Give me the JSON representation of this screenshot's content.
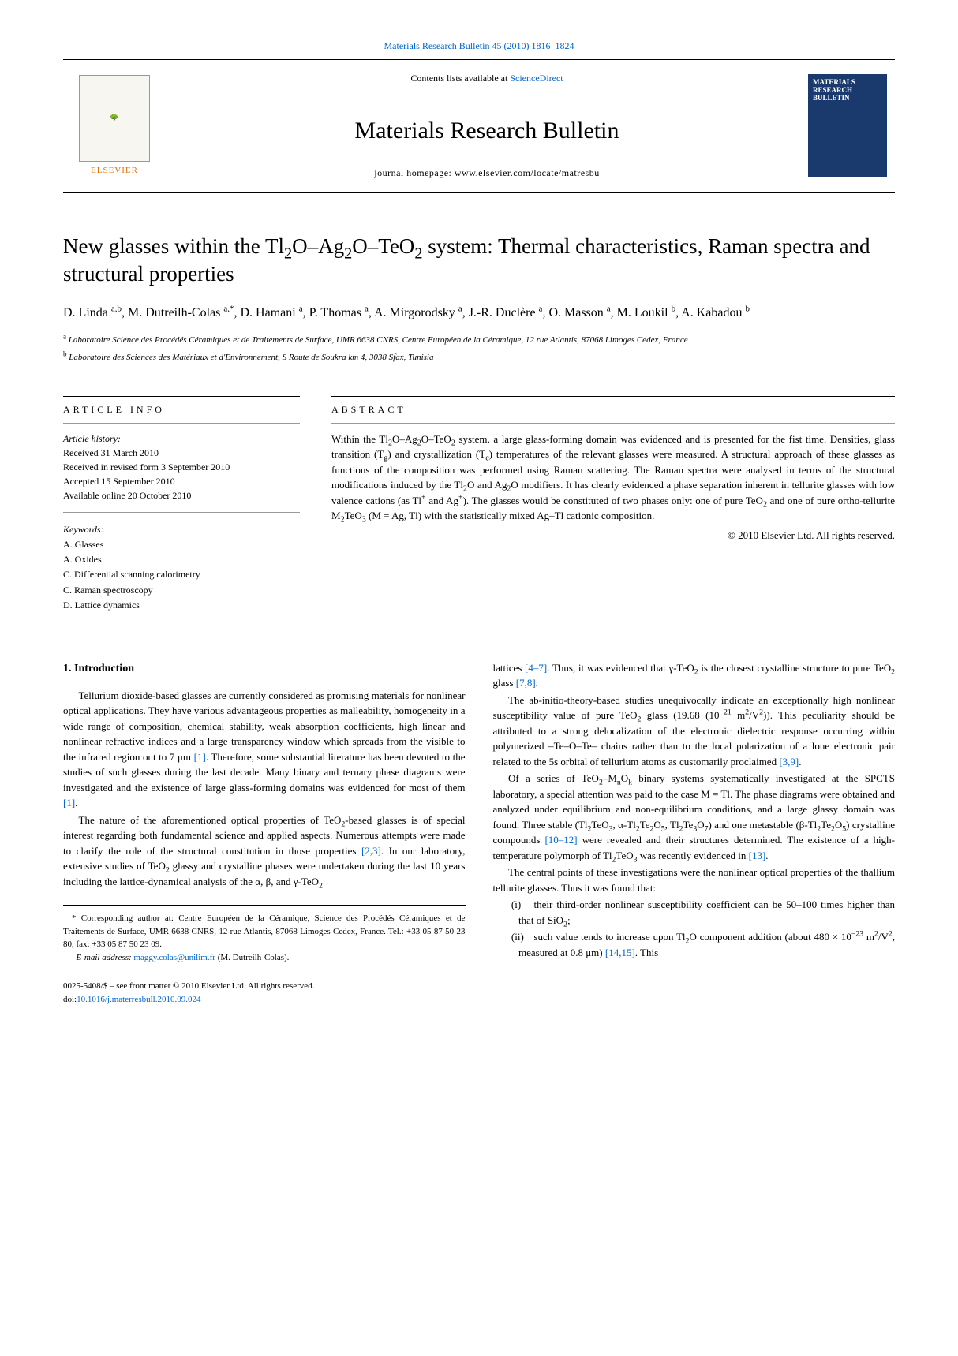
{
  "citation": "Materials Research Bulletin 45 (2010) 1816–1824",
  "banner": {
    "contents_prefix": "Contents lists available at ",
    "contents_link": "ScienceDirect",
    "journal_title": "Materials Research Bulletin",
    "homepage_prefix": "journal homepage: ",
    "homepage_url": "www.elsevier.com/locate/matresbu",
    "publisher": "ELSEVIER",
    "cover_title": "MATERIALS RESEARCH BULLETIN"
  },
  "article": {
    "title_html": "New glasses within the Tl<sub>2</sub>O–Ag<sub>2</sub>O–TeO<sub>2</sub> system: Thermal characteristics, Raman spectra and structural properties",
    "authors_html": "D. Linda <sup>a,b</sup>, M. Dutreilh-Colas <sup>a,*</sup>, D. Hamani <sup>a</sup>, P. Thomas <sup>a</sup>, A. Mirgorodsky <sup>a</sup>, J.-R. Duclère <sup>a</sup>, O. Masson <sup>a</sup>, M. Loukil <sup>b</sup>, A. Kabadou <sup>b</sup>",
    "affiliations": [
      "<sup>a</sup> Laboratoire Science des Procédés Céramiques et de Traitements de Surface, UMR 6638 CNRS, Centre Européen de la Céramique, 12 rue Atlantis, 87068 Limoges Cedex, France",
      "<sup>b</sup> Laboratoire des Sciences des Matériaux et d'Environnement, S Route de Soukra km 4, 3038 Sfax, Tunisia"
    ]
  },
  "info": {
    "header": "ARTICLE INFO",
    "history_label": "Article history:",
    "history": [
      "Received 31 March 2010",
      "Received in revised form 3 September 2010",
      "Accepted 15 September 2010",
      "Available online 20 October 2010"
    ],
    "keywords_label": "Keywords:",
    "keywords": [
      "A. Glasses",
      "A. Oxides",
      "C. Differential scanning calorimetry",
      "C. Raman spectroscopy",
      "D. Lattice dynamics"
    ]
  },
  "abstract": {
    "header": "ABSTRACT",
    "text_html": "Within the Tl<sub>2</sub>O–Ag<sub>2</sub>O–TeO<sub>2</sub> system, a large glass-forming domain was evidenced and is presented for the fist time. Densities, glass transition (T<sub>g</sub>) and crystallization (T<sub>c</sub>) temperatures of the relevant glasses were measured. A structural approach of these glasses as functions of the composition was performed using Raman scattering. The Raman spectra were analysed in terms of the structural modifications induced by the Tl<sub>2</sub>O and Ag<sub>2</sub>O modifiers. It has clearly evidenced a phase separation inherent in tellurite glasses with low valence cations (as Tl<sup>+</sup> and Ag<sup>+</sup>). The glasses would be constituted of two phases only: one of pure TeO<sub>2</sub> and one of pure ortho-tellurite M<sub>2</sub>TeO<sub>3</sub> (M = Ag, Tl) with the statistically mixed Ag–Tl cationic composition.",
    "copyright": "© 2010 Elsevier Ltd. All rights reserved."
  },
  "body": {
    "intro_heading": "1. Introduction",
    "para1_html": "Tellurium dioxide-based glasses are currently considered as promising materials for nonlinear optical applications. They have various advantageous properties as malleability, homogeneity in a wide range of composition, chemical stability, weak absorption coefficients, high linear and nonlinear refractive indices and a large transparency window which spreads from the visible to the infrared region out to 7 μm <a href='#'>[1]</a>. Therefore, some substantial literature has been devoted to the studies of such glasses during the last decade. Many binary and ternary phase diagrams were investigated and the existence of large glass-forming domains was evidenced for most of them <a href='#'>[1]</a>.",
    "para2_html": "The nature of the aforementioned optical properties of TeO<sub>2</sub>-based glasses is of special interest regarding both fundamental science and applied aspects. Numerous attempts were made to clarify the role of the structural constitution in those properties <a href='#'>[2,3]</a>. In our laboratory, extensive studies of TeO<sub>2</sub> glassy and crystalline phases were undertaken during the last 10 years including the lattice-dynamical analysis of the α, β, and γ-TeO<sub>2</sub>",
    "para2b_html": "lattices <a href='#'>[4–7]</a>. Thus, it was evidenced that γ-TeO<sub>2</sub> is the closest crystalline structure to pure TeO<sub>2</sub> glass <a href='#'>[7,8]</a>.",
    "para3_html": "The ab-initio-theory-based studies unequivocally indicate an exceptionally high nonlinear susceptibility value of pure TeO<sub>2</sub> glass (19.68 (10<sup>−21</sup> m<sup>2</sup>/V<sup>2</sup>)). This peculiarity should be attributed to a strong delocalization of the electronic dielectric response occurring within polymerized –Te–O–Te– chains rather than to the local polarization of a lone electronic pair related to the 5s orbital of tellurium atoms as customarily proclaimed <a href='#'>[3,9]</a>.",
    "para4_html": "Of a series of TeO<sub>2</sub>–M<sub>n</sub>O<sub>k</sub> binary systems systematically investigated at the SPCTS laboratory, a special attention was paid to the case M = Tl. The phase diagrams were obtained and analyzed under equilibrium and non-equilibrium conditions, and a large glassy domain was found. Three stable (Tl<sub>2</sub>TeO<sub>3</sub>, α-Tl<sub>2</sub>Te<sub>2</sub>O<sub>5</sub>, Tl<sub>2</sub>Te<sub>3</sub>O<sub>7</sub>) and one metastable (β-Tl<sub>2</sub>Te<sub>2</sub>O<sub>5</sub>) crystalline compounds <a href='#'>[10–12]</a> were revealed and their structures determined. The existence of a high-temperature polymorph of Tl<sub>2</sub>TeO<sub>3</sub> was recently evidenced in <a href='#'>[13]</a>.",
    "para5_html": "The central points of these investigations were the nonlinear optical properties of the thallium tellurite glasses. Thus it was found that:",
    "item1_html": "their third-order nonlinear susceptibility coefficient can be 50–100 times higher than that of SiO<sub>2</sub>;",
    "item2_html": "such value tends to increase upon Tl<sub>2</sub>O component addition (about 480 × 10<sup>−23</sup> m<sup>2</sup>/V<sup>2</sup>, measured at 0.8 μm) <a href='#'>[14,15]</a>. This"
  },
  "footnote": {
    "text_html": "* Corresponding author at: Centre Européen de la Céramique, Science des Procédés Céramiques et de Traitements de Surface, UMR 6638 CNRS, 12 rue Atlantis, 87068 Limoges Cedex, France. Tel.: +33 05 87 50 23 80, fax: +33 05 87 50 23 09.",
    "email_label": "E-mail address:",
    "email": "maggy.colas@unilim.fr",
    "email_suffix": "(M. Dutreilh-Colas)."
  },
  "bottom": {
    "issn": "0025-5408/$ – see front matter © 2010 Elsevier Ltd. All rights reserved.",
    "doi_prefix": "doi:",
    "doi": "10.1016/j.materresbull.2010.09.024"
  }
}
